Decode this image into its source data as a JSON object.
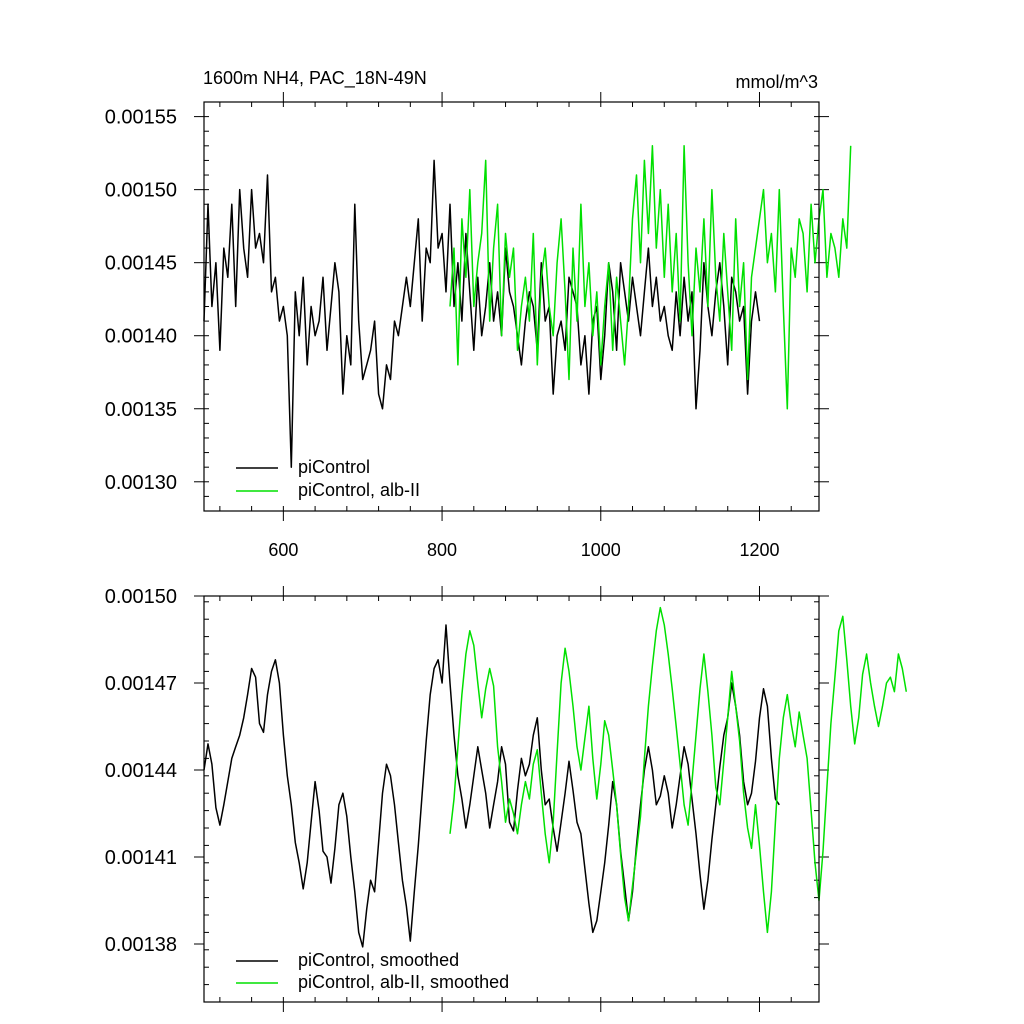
{
  "chart_data": [
    {
      "id": "top",
      "type": "line",
      "title": "1600m NH4, PAC_18N-49N",
      "units": "mmol/m^3",
      "xlim": [
        500,
        1275
      ],
      "ylim": [
        0.00128,
        0.00156
      ],
      "x_ticks": [
        600,
        800,
        1000,
        1200
      ],
      "x_tick_labels": [
        "600",
        "800",
        "1000",
        "1200"
      ],
      "y_ticks": [
        0.0013,
        0.00135,
        0.0014,
        0.00145,
        0.0015,
        0.00155
      ],
      "y_tick_labels": [
        "0.00130",
        "0.00135",
        "0.00140",
        "0.00145",
        "0.00150",
        "0.00155"
      ],
      "legend_position": "bottom-left",
      "series": [
        {
          "name": "piControl",
          "color": "#000000",
          "x_start": 500,
          "x_step": 5,
          "values": [
            0.00141,
            0.00149,
            0.00142,
            0.00145,
            0.00139,
            0.00146,
            0.00144,
            0.00149,
            0.00142,
            0.0015,
            0.00146,
            0.00144,
            0.0015,
            0.00146,
            0.00147,
            0.00145,
            0.00151,
            0.00143,
            0.00144,
            0.00141,
            0.00142,
            0.0014,
            0.00131,
            0.00143,
            0.0014,
            0.00144,
            0.00138,
            0.00142,
            0.0014,
            0.00141,
            0.00144,
            0.00139,
            0.00142,
            0.00145,
            0.00143,
            0.00136,
            0.0014,
            0.00138,
            0.00149,
            0.00141,
            0.00137,
            0.00138,
            0.00139,
            0.00141,
            0.00136,
            0.00135,
            0.00138,
            0.00137,
            0.00141,
            0.0014,
            0.00142,
            0.00144,
            0.00142,
            0.00145,
            0.00148,
            0.00141,
            0.00146,
            0.00145,
            0.00152,
            0.00146,
            0.00147,
            0.00143,
            0.00149,
            0.00142,
            0.00145,
            0.00141,
            0.00147,
            0.00143,
            0.00139,
            0.00144,
            0.0014,
            0.00142,
            0.00145,
            0.00141,
            0.00143,
            0.0014,
            0.00146,
            0.00143,
            0.00142,
            0.0014,
            0.00138,
            0.00141,
            0.00143,
            0.00142,
            0.00139,
            0.00145,
            0.00141,
            0.00142,
            0.00136,
            0.0014,
            0.00141,
            0.00139,
            0.00144,
            0.00143,
            0.00142,
            0.00138,
            0.0014,
            0.00136,
            0.00141,
            0.00142,
            0.00137,
            0.0014,
            0.00145,
            0.00143,
            0.00139,
            0.00145,
            0.00143,
            0.00141,
            0.00144,
            0.00142,
            0.0014,
            0.00143,
            0.00146,
            0.00142,
            0.00144,
            0.00141,
            0.00142,
            0.0014,
            0.00139,
            0.00143,
            0.0014,
            0.00144,
            0.00141,
            0.00143,
            0.00135,
            0.00139,
            0.00145,
            0.00142,
            0.0014,
            0.00143,
            0.00145,
            0.00142,
            0.00138,
            0.00144,
            0.00143,
            0.00141,
            0.00142,
            0.00136,
            0.00141,
            0.00143,
            0.00141
          ]
        },
        {
          "name": "piControl, alb-II",
          "color": "#00e000",
          "x_start": 810,
          "x_step": 5,
          "values": [
            0.00142,
            0.00146,
            0.00138,
            0.00148,
            0.00144,
            0.0015,
            0.00142,
            0.00145,
            0.00147,
            0.00152,
            0.00141,
            0.00146,
            0.00149,
            0.0014,
            0.00147,
            0.00144,
            0.00146,
            0.00139,
            0.00142,
            0.00144,
            0.00141,
            0.00147,
            0.00138,
            0.00144,
            0.00146,
            0.00142,
            0.0014,
            0.00145,
            0.00148,
            0.00143,
            0.00137,
            0.00146,
            0.00141,
            0.00149,
            0.00142,
            0.00145,
            0.0014,
            0.00143,
            0.00138,
            0.00142,
            0.00145,
            0.00139,
            0.00144,
            0.00141,
            0.00138,
            0.00142,
            0.00148,
            0.00151,
            0.00145,
            0.00152,
            0.00147,
            0.00153,
            0.00146,
            0.0015,
            0.00144,
            0.00149,
            0.00143,
            0.00147,
            0.00141,
            0.00153,
            0.00145,
            0.0014,
            0.00146,
            0.00143,
            0.00148,
            0.00142,
            0.0015,
            0.00144,
            0.00141,
            0.00147,
            0.00143,
            0.00139,
            0.00148,
            0.00142,
            0.00145,
            0.00137,
            0.00144,
            0.00146,
            0.00148,
            0.0015,
            0.00145,
            0.00147,
            0.00143,
            0.0015,
            0.00142,
            0.00135,
            0.00146,
            0.00144,
            0.00148,
            0.00147,
            0.00143,
            0.00149,
            0.00145,
            0.00148,
            0.0015,
            0.00144,
            0.00147,
            0.00146,
            0.00144,
            0.00148,
            0.00146,
            0.00153
          ]
        }
      ]
    },
    {
      "id": "bottom",
      "type": "line",
      "title": "",
      "xlim": [
        500,
        1275
      ],
      "ylim": [
        0.00136,
        0.0015
      ],
      "x_ticks": [
        600,
        800,
        1000,
        1200
      ],
      "x_tick_labels": [
        "",
        "",
        "",
        ""
      ],
      "y_ticks": [
        0.00138,
        0.00141,
        0.00144,
        0.00147,
        0.0015
      ],
      "y_tick_labels": [
        "0.00138",
        "0.00141",
        "0.00144",
        "0.00147",
        "0.00150"
      ],
      "legend_position": "bottom-left",
      "series": [
        {
          "name": "piControl, smoothed",
          "color": "#000000",
          "x_start": 500,
          "x_step": 5,
          "values": [
            0.00144,
            0.001449,
            0.001442,
            0.001427,
            0.001421,
            0.001428,
            0.001436,
            0.001444,
            0.001448,
            0.001452,
            0.001458,
            0.001466,
            0.001475,
            0.001472,
            0.001456,
            0.001453,
            0.001466,
            0.001474,
            0.001478,
            0.00147,
            0.001452,
            0.001438,
            0.001428,
            0.001415,
            0.001408,
            0.001399,
            0.001408,
            0.001422,
            0.001436,
            0.001426,
            0.001412,
            0.00141,
            0.001401,
            0.001413,
            0.001428,
            0.001432,
            0.001424,
            0.00141,
            0.001398,
            0.001384,
            0.001379,
            0.001392,
            0.001402,
            0.001398,
            0.001415,
            0.001432,
            0.001442,
            0.001438,
            0.001428,
            0.001415,
            0.001402,
            0.001393,
            0.001381,
            0.001398,
            0.001414,
            0.001432,
            0.00145,
            0.001466,
            0.001475,
            0.001478,
            0.00147,
            0.00149,
            0.00147,
            0.001452,
            0.001438,
            0.00143,
            0.00142,
            0.001428,
            0.001438,
            0.001448,
            0.00144,
            0.001432,
            0.00142,
            0.001428,
            0.001436,
            0.001448,
            0.001442,
            0.001422,
            0.001419,
            0.001433,
            0.001444,
            0.001438,
            0.001442,
            0.001452,
            0.001458,
            0.00144,
            0.001428,
            0.00143,
            0.00142,
            0.001412,
            0.001422,
            0.001432,
            0.001443,
            0.001433,
            0.001422,
            0.001418,
            0.001406,
            0.001394,
            0.001384,
            0.001388,
            0.001398,
            0.001408,
            0.001421,
            0.001436,
            0.001428,
            0.001412,
            0.0014,
            0.001388,
            0.001398,
            0.001414,
            0.001428,
            0.00144,
            0.001448,
            0.00144,
            0.001428,
            0.001431,
            0.001438,
            0.001432,
            0.00142,
            0.001428,
            0.001438,
            0.001448,
            0.001442,
            0.00143,
            0.001418,
            0.001404,
            0.001392,
            0.001402,
            0.001416,
            0.001428,
            0.001441,
            0.001452,
            0.001458,
            0.00147,
            0.001462,
            0.001452,
            0.001436,
            0.001428,
            0.001432,
            0.001443,
            0.001458,
            0.001468,
            0.001462,
            0.001444,
            0.00143,
            0.001428
          ]
        },
        {
          "name": "piControl, alb-II, smoothed",
          "color": "#00e000",
          "x_start": 810,
          "x_step": 5,
          "values": [
            0.001418,
            0.00143,
            0.001448,
            0.001466,
            0.00148,
            0.001488,
            0.001483,
            0.00147,
            0.001458,
            0.001468,
            0.001475,
            0.001469,
            0.001448,
            0.001436,
            0.001422,
            0.00143,
            0.001425,
            0.001418,
            0.001428,
            0.001436,
            0.00143,
            0.001442,
            0.001447,
            0.001432,
            0.001418,
            0.001408,
            0.001422,
            0.001446,
            0.00147,
            0.001482,
            0.001474,
            0.001462,
            0.001448,
            0.00144,
            0.001451,
            0.001462,
            0.001444,
            0.00143,
            0.001442,
            0.001457,
            0.001452,
            0.00144,
            0.001428,
            0.001411,
            0.001396,
            0.001388,
            0.0014,
            0.001412,
            0.001424,
            0.001444,
            0.001462,
            0.001476,
            0.001488,
            0.001496,
            0.00149,
            0.00148,
            0.001468,
            0.001455,
            0.001442,
            0.001428,
            0.001421,
            0.001436,
            0.001452,
            0.001468,
            0.00148,
            0.001467,
            0.001452,
            0.001434,
            0.001428,
            0.001443,
            0.001458,
            0.001474,
            0.001462,
            0.00145,
            0.001432,
            0.00142,
            0.001413,
            0.001428,
            0.001414,
            0.001398,
            0.001384,
            0.001398,
            0.001422,
            0.001444,
            0.001458,
            0.001466,
            0.001456,
            0.001448,
            0.00146,
            0.001452,
            0.001444,
            0.001426,
            0.001408,
            0.001395,
            0.001412,
            0.001434,
            0.001456,
            0.001472,
            0.001488,
            0.001493,
            0.001478,
            0.001462,
            0.001449,
            0.001458,
            0.001473,
            0.00148,
            0.00147,
            0.001462,
            0.001455,
            0.001462,
            0.00147,
            0.001472,
            0.001467,
            0.00148,
            0.001475,
            0.001467
          ]
        }
      ]
    }
  ]
}
